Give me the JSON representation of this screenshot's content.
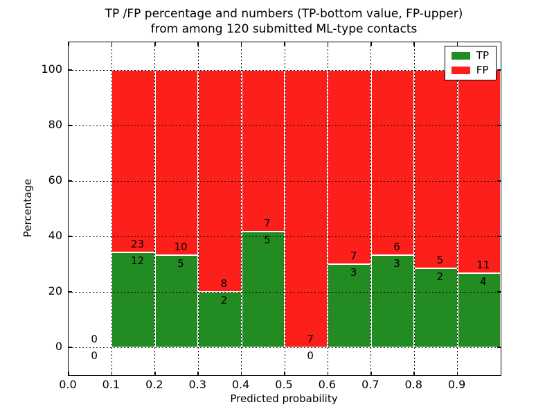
{
  "chart_data": {
    "type": "bar",
    "stacked": true,
    "title_lines": [
      "TP /FP percentage and numbers (TP-bottom value, FP-upper)",
      "from among 120 submitted ML-type contacts"
    ],
    "xlabel": "Predicted probability",
    "ylabel": "Percentage",
    "xlim": [
      0.0,
      1.0
    ],
    "ylim": [
      -10,
      110
    ],
    "xticks": [
      0.0,
      0.1,
      0.2,
      0.3,
      0.4,
      0.5,
      0.6,
      0.7,
      0.8,
      0.9
    ],
    "xtick_labels": [
      "0.0",
      "0.1",
      "0.2",
      "0.3",
      "0.4",
      "0.5",
      "0.6",
      "0.7",
      "0.8",
      "0.9"
    ],
    "yticks": [
      0,
      20,
      40,
      60,
      80,
      100
    ],
    "ytick_labels": [
      "0",
      "20",
      "40",
      "60",
      "80",
      "100"
    ],
    "grid": "dotted-black-over-bars",
    "bin_edges": [
      0.0,
      0.1,
      0.2,
      0.3,
      0.4,
      0.5,
      0.6,
      0.7,
      0.8,
      0.9,
      1.0
    ],
    "series": [
      {
        "name": "TP",
        "color": "#228b22",
        "counts": [
          0,
          12,
          5,
          2,
          5,
          0,
          3,
          3,
          2,
          4
        ]
      },
      {
        "name": "FP",
        "color": "#fc1f1a",
        "counts": [
          0,
          23,
          10,
          8,
          7,
          7,
          7,
          6,
          5,
          11
        ]
      }
    ],
    "tp_percentages": [
      0,
      34.3,
      33.3,
      20.0,
      41.7,
      0.0,
      30.0,
      33.3,
      28.6,
      26.7
    ],
    "total_contacts": 120,
    "bar_edge_color": "#ffffff",
    "legend": {
      "position": "upper right",
      "entries": [
        "TP",
        "FP"
      ]
    }
  }
}
